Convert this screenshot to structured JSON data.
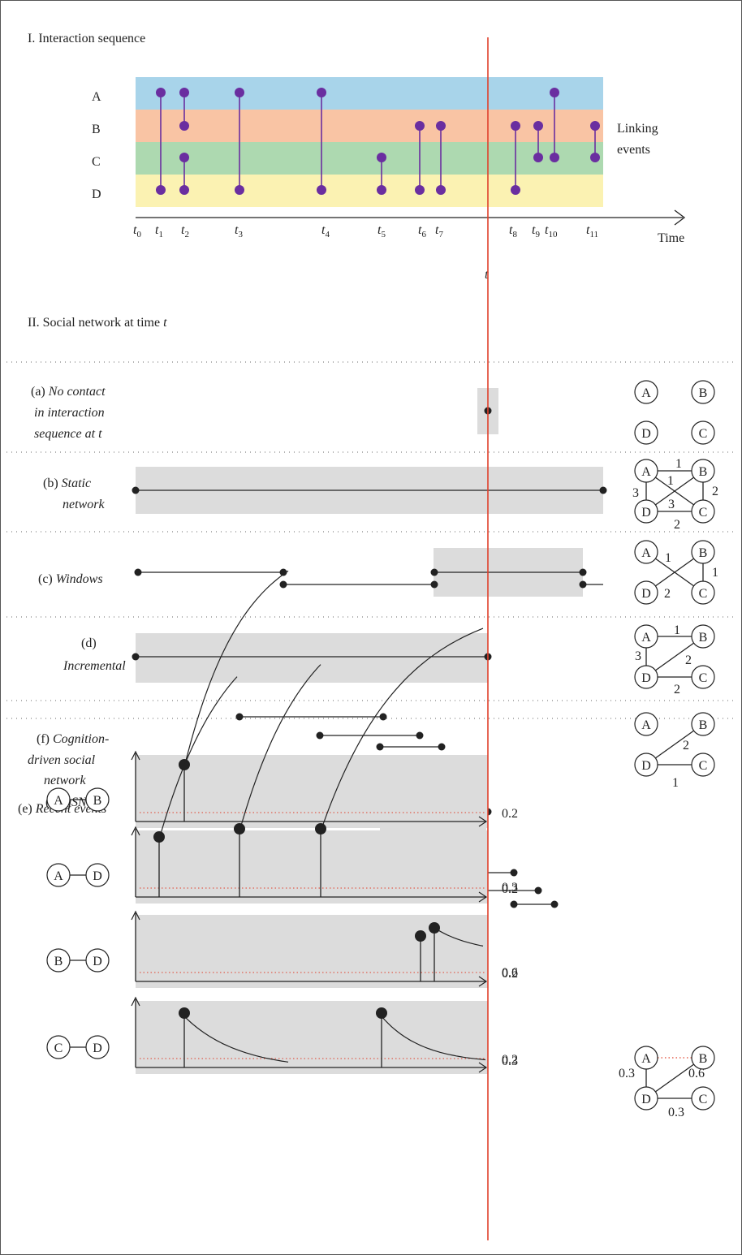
{
  "section1": {
    "title": "I. Interaction sequence"
  },
  "section2": {
    "title_prefix": "II. Social network at time ",
    "title_var": "t"
  },
  "rows": {
    "A": {
      "label": "A",
      "color": "#2a6db0",
      "band": "#a8d4ea"
    },
    "B": {
      "label": "B",
      "color": "#e0863a",
      "band": "#f9c4a4"
    },
    "C": {
      "label": "C",
      "color": "#2f8a3a",
      "band": "#add9b0"
    },
    "D": {
      "label": "D",
      "color": "#d8262a",
      "band": "#fbf2b2"
    }
  },
  "linking_label": {
    "line1": "Linking",
    "line2": "events"
  },
  "axis": {
    "label": "Time",
    "current": "t",
    "ticks": [
      {
        "base": "t",
        "sub": "0"
      },
      {
        "base": "t",
        "sub": "1"
      },
      {
        "base": "t",
        "sub": "2"
      },
      {
        "base": "t",
        "sub": "3"
      },
      {
        "base": "t",
        "sub": "4"
      },
      {
        "base": "t",
        "sub": "5"
      },
      {
        "base": "t",
        "sub": "6"
      },
      {
        "base": "t",
        "sub": "7"
      },
      {
        "base": "t",
        "sub": "8"
      },
      {
        "base": "t",
        "sub": "9"
      },
      {
        "base": "t",
        "sub": "10"
      },
      {
        "base": "t",
        "sub": "11"
      }
    ]
  },
  "events": [
    {
      "time": "1",
      "nodes": [
        "A",
        "D"
      ]
    },
    {
      "time": "2",
      "nodes": [
        "A",
        "B"
      ]
    },
    {
      "time": "2",
      "nodes": [
        "C",
        "D"
      ]
    },
    {
      "time": "3",
      "nodes": [
        "A",
        "D"
      ]
    },
    {
      "time": "4",
      "nodes": [
        "A",
        "D"
      ]
    },
    {
      "time": "5",
      "nodes": [
        "C",
        "D"
      ]
    },
    {
      "time": "6",
      "nodes": [
        "B",
        "D"
      ]
    },
    {
      "time": "7",
      "nodes": [
        "B",
        "D"
      ]
    },
    {
      "time": "8",
      "nodes": [
        "B",
        "D"
      ]
    },
    {
      "time": "9",
      "nodes": [
        "B",
        "C"
      ]
    },
    {
      "time": "10",
      "nodes": [
        "A",
        "C"
      ]
    },
    {
      "time": "11",
      "nodes": [
        "B",
        "C"
      ]
    }
  ],
  "methods": {
    "a": {
      "prefix": "(a) ",
      "lines": [
        "No contact",
        "in interaction",
        "sequence at t"
      ]
    },
    "b": {
      "prefix": "(b) ",
      "lines": [
        "Static",
        "network"
      ]
    },
    "c": {
      "prefix": "(c) ",
      "lines": [
        "Windows"
      ]
    },
    "d": {
      "prefix": "(d)",
      "lines": [
        "Incremental"
      ]
    },
    "e": {
      "prefix": "(e) ",
      "lines": [
        "Recent events"
      ]
    },
    "f": {
      "prefix": "(f) ",
      "lines": [
        "Cognition-",
        "driven social",
        "network",
        "(CogSNet)"
      ],
      "abbr": "CogSNet"
    }
  },
  "graphs": {
    "b": {
      "edges": {
        "AB": "1",
        "AC": "1",
        "AD": "3",
        "BD": "3",
        "BC": "2",
        "DC": "2"
      }
    },
    "c": {
      "edges": {
        "AC": "1",
        "BD": "2",
        "BC": "1"
      }
    },
    "d": {
      "edges": {
        "AB": "1",
        "AD": "3",
        "BD": "2",
        "DC": "2"
      }
    },
    "e": {
      "edges": {
        "BD": "2",
        "DC": "1"
      }
    },
    "f": {
      "edges": {
        "AD": "0.3",
        "BD": "0.6",
        "DC": "0.3"
      }
    }
  },
  "cogsnet": {
    "threshold": "0.2",
    "pairs": [
      {
        "a": "A",
        "b": "B",
        "value": ""
      },
      {
        "a": "A",
        "b": "D",
        "value": "0.3"
      },
      {
        "a": "B",
        "b": "D",
        "value": "0.6"
      },
      {
        "a": "C",
        "b": "D",
        "value": "0.3"
      }
    ]
  },
  "colors": {
    "red_line": "#e0412c",
    "purple": "#6a2ea0",
    "threshold": "#e0412c"
  }
}
